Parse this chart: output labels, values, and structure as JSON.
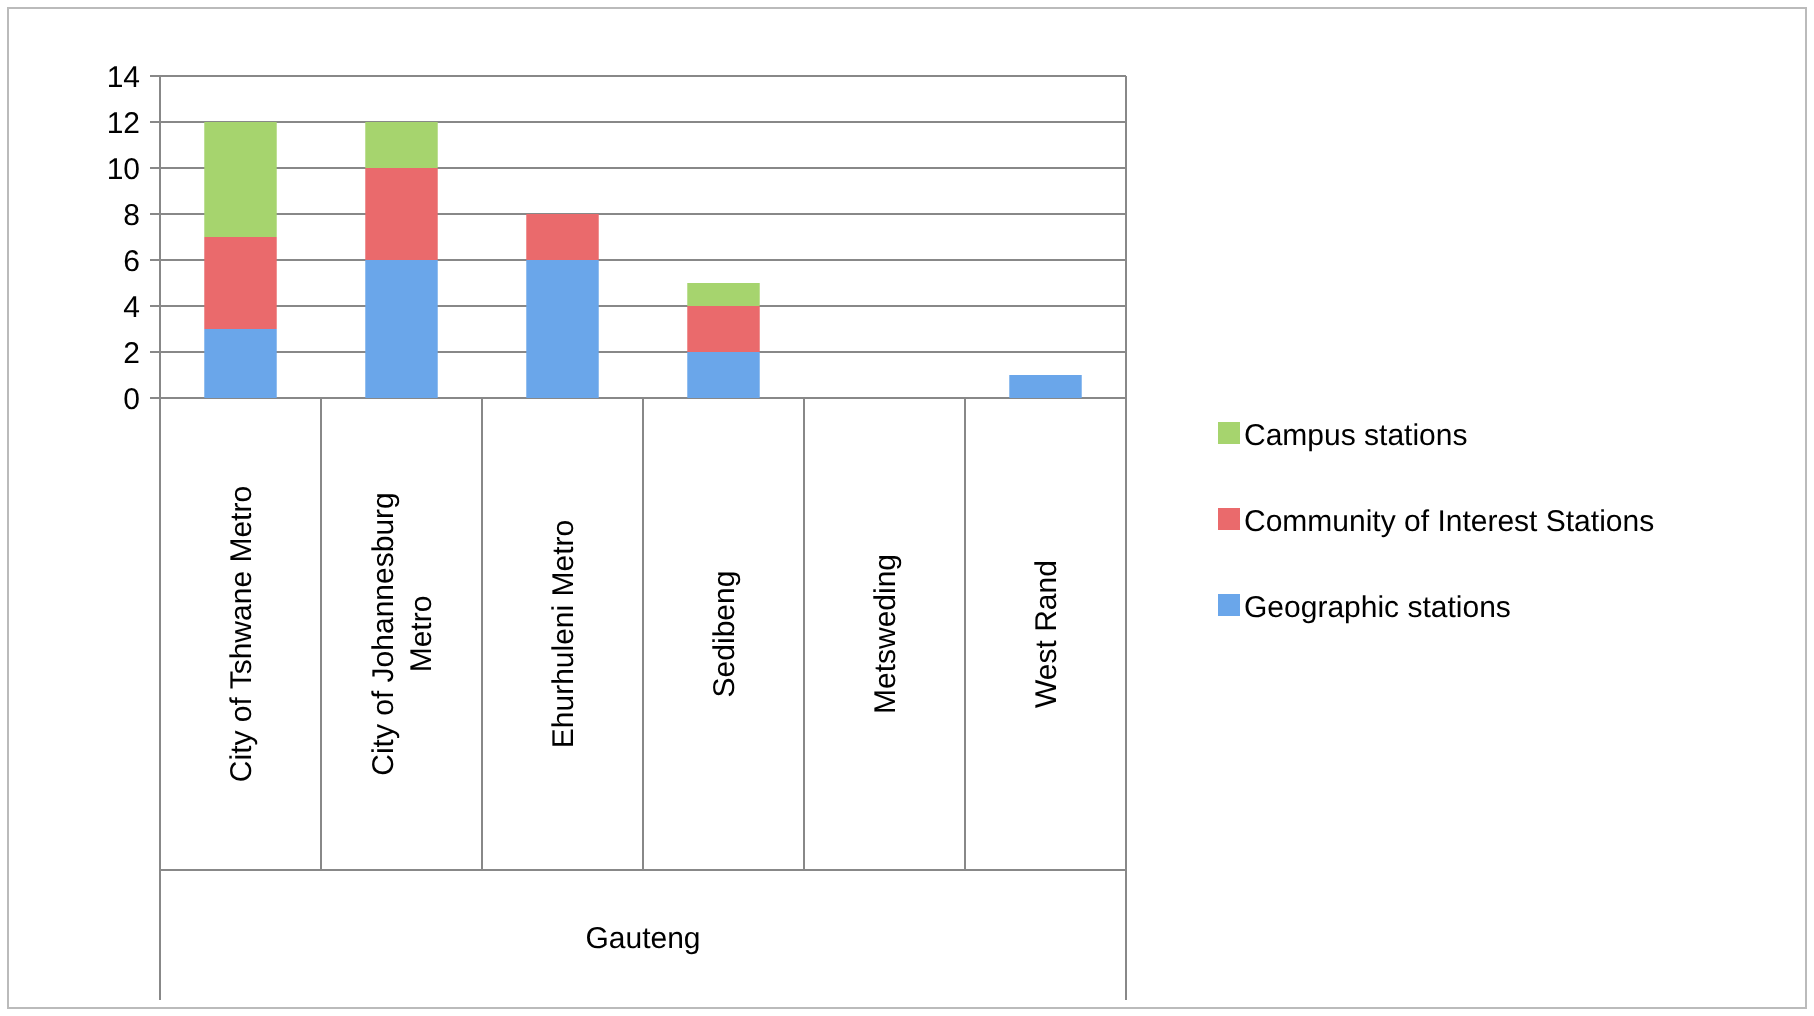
{
  "chart_data": {
    "type": "bar",
    "stacked": true,
    "categories": [
      "City of Tshwane Metro",
      "City of Johannesburg Metro",
      "Ehurhuleni Metro",
      "Sedibeng",
      "Metsweding",
      "West Rand"
    ],
    "series": [
      {
        "name": "Geographic stations",
        "color": "#6aa6ea",
        "values": [
          3,
          6,
          6,
          2,
          0,
          1
        ]
      },
      {
        "name": "Community of Interest Stations",
        "color": "#ea6a6c",
        "values": [
          4,
          4,
          2,
          2,
          0,
          0
        ]
      },
      {
        "name": "Campus stations",
        "color": "#a6d46e",
        "values": [
          5,
          2,
          0,
          1,
          0,
          0
        ]
      }
    ],
    "ylim": [
      0,
      14
    ],
    "yticks": [
      0,
      2,
      4,
      6,
      8,
      10,
      12,
      14
    ],
    "grid": "y",
    "legend": "right",
    "annotations": [
      "Gauteng"
    ]
  }
}
